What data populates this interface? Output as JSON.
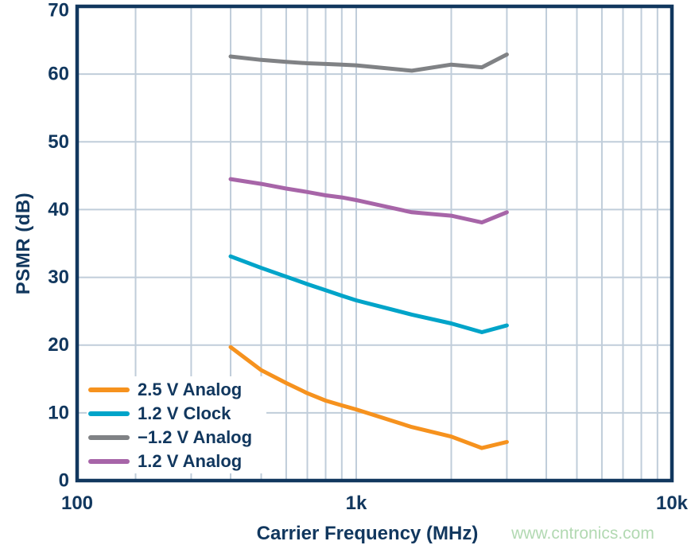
{
  "colors": {
    "axis": "#11375e",
    "text": "#11375e",
    "grid": "#c0cdda",
    "background": "#ffffff"
  },
  "watermark": {
    "text": "www.cntronics.com",
    "color": "#b2d9b2"
  },
  "chart_data": {
    "type": "line",
    "title": "",
    "xlabel": "Carrier Frequency (MHz)",
    "ylabel": "PSMR (dB)",
    "x_scale": "log",
    "xlim": [
      100,
      10000
    ],
    "ylim": [
      0,
      70
    ],
    "grid": true,
    "legend_position": "lower-left",
    "x_ticks": [
      {
        "value": 100,
        "label": "100"
      },
      {
        "value": 1000,
        "label": "1k"
      },
      {
        "value": 10000,
        "label": "10k"
      }
    ],
    "y_ticks": [
      0,
      10,
      20,
      30,
      40,
      50,
      60,
      70
    ],
    "x_gridlines": [
      200,
      300,
      400,
      500,
      600,
      700,
      800,
      900,
      1000,
      2000,
      3000,
      4000,
      5000,
      6000,
      7000,
      8000,
      9000
    ],
    "x": [
      400,
      500,
      600,
      700,
      800,
      900,
      1000,
      1500,
      2000,
      2500,
      3000
    ],
    "series": [
      {
        "name": "2.5 V Analog",
        "color": "#f6921e",
        "values": [
          19.7,
          16.3,
          14.4,
          12.9,
          11.8,
          11.1,
          10.5,
          7.9,
          6.5,
          4.8,
          5.7
        ]
      },
      {
        "name": "1.2 V Clock",
        "color": "#00a4c9",
        "values": [
          33.1,
          31.4,
          30.1,
          29.0,
          28.1,
          27.3,
          26.6,
          24.5,
          23.2,
          21.9,
          22.9
        ]
      },
      {
        "name": "−1.2 V Analog",
        "color": "#808285",
        "values": [
          62.6,
          62.1,
          61.8,
          61.6,
          61.5,
          61.4,
          61.3,
          60.5,
          61.4,
          61.0,
          62.9
        ]
      },
      {
        "name": "1.2 V Analog",
        "color": "#a765a8",
        "values": [
          44.5,
          43.8,
          43.1,
          42.6,
          42.1,
          41.8,
          41.4,
          39.6,
          39.1,
          38.1,
          39.6
        ]
      }
    ]
  }
}
